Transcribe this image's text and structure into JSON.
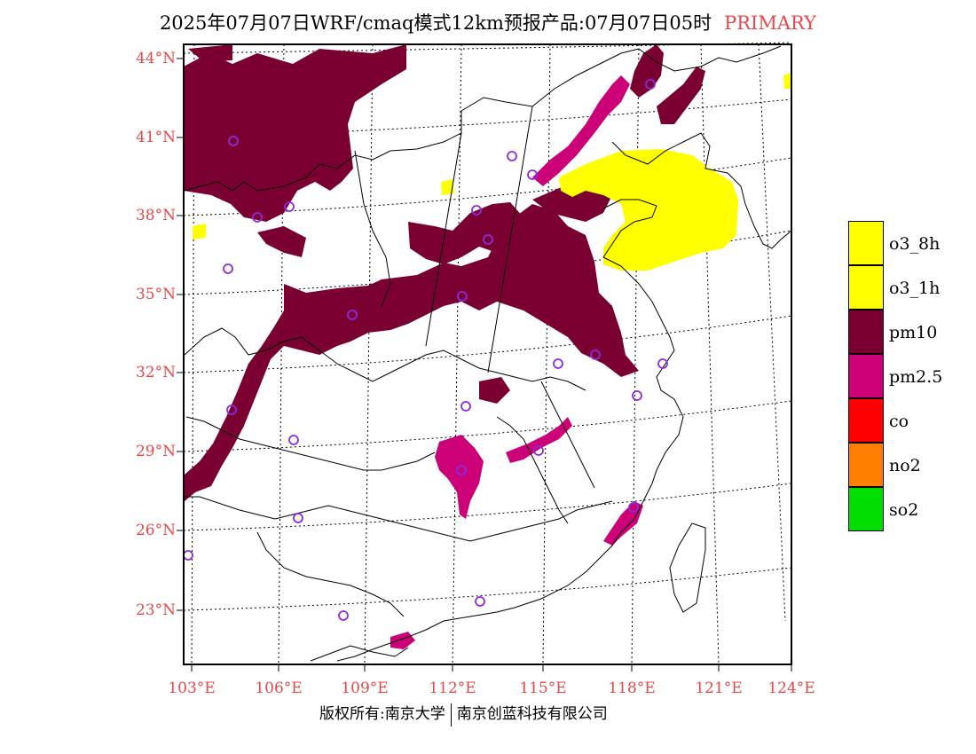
{
  "title": {
    "main": "2025年07月07日WRF/cmaq模式12km预报产品:07月07日05时",
    "tag": "PRIMARY"
  },
  "axes": {
    "lat_labels": [
      "44°N",
      "41°N",
      "38°N",
      "35°N",
      "32°N",
      "29°N",
      "26°N",
      "23°N"
    ],
    "lon_labels": [
      "103°E",
      "106°E",
      "109°E",
      "112°E",
      "115°E",
      "118°E",
      "121°E",
      "124°E"
    ]
  },
  "legend": [
    {
      "label": "o3_8h",
      "color": "#ffff00"
    },
    {
      "label": "o3_1h",
      "color": "#ffff00"
    },
    {
      "label": "pm10",
      "color": "#7a0032"
    },
    {
      "label": "pm2.5",
      "color": "#cc0077"
    },
    {
      "label": "co",
      "color": "#ff0000"
    },
    {
      "label": "no2",
      "color": "#ff7f00"
    },
    {
      "label": "so2",
      "color": "#00dd00"
    }
  ],
  "colors": {
    "o3": "#ffff00",
    "pm10": "#7a0032",
    "pm25": "#cc0077",
    "marker": "#8a2be2",
    "axis_label": "#e8484a"
  },
  "footer": {
    "left": "版权所有:南京大学",
    "right": "南京创蓝科技有限公司"
  }
}
